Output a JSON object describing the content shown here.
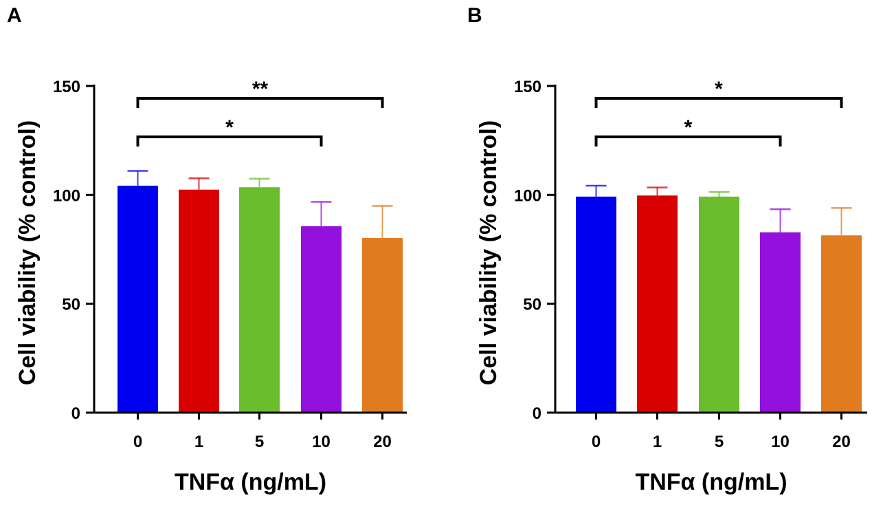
{
  "chart_data": [
    {
      "type": "bar",
      "panel_label": "A",
      "categories": [
        "0",
        "1",
        "5",
        "10",
        "20"
      ],
      "values": [
        104.2,
        102.4,
        103.5,
        85.6,
        80.2
      ],
      "error_upper": [
        111.0,
        107.6,
        107.4,
        96.8,
        94.9
      ],
      "colors": [
        "#0000f0",
        "#d80000",
        "#6abd2c",
        "#9410dc",
        "#e07b20"
      ],
      "xlabel": "TNFα (ng/mL)",
      "ylabel": "Cell viability (% control)",
      "ylim": [
        0,
        150
      ],
      "yticks": [
        "0",
        "50",
        "100",
        "150"
      ],
      "significance": [
        {
          "from": "0",
          "to": "20",
          "label": "**"
        },
        {
          "from": "0",
          "to": "10",
          "label": "*"
        }
      ],
      "grid": false
    },
    {
      "type": "bar",
      "panel_label": "B",
      "categories": [
        "0",
        "1",
        "5",
        "10",
        "20"
      ],
      "values": [
        99.2,
        99.7,
        99.2,
        82.8,
        81.4
      ],
      "error_upper": [
        104.2,
        103.4,
        101.3,
        93.4,
        94.0
      ],
      "colors": [
        "#0000f0",
        "#d80000",
        "#6abd2c",
        "#9410dc",
        "#e07b20"
      ],
      "xlabel": "TNFα (ng/mL)",
      "ylabel": "Cell viability (% control)",
      "ylim": [
        0,
        150
      ],
      "yticks": [
        "0",
        "50",
        "100",
        "150"
      ],
      "significance": [
        {
          "from": "0",
          "to": "20",
          "label": "*"
        },
        {
          "from": "0",
          "to": "10",
          "label": "*"
        }
      ],
      "grid": false
    }
  ]
}
